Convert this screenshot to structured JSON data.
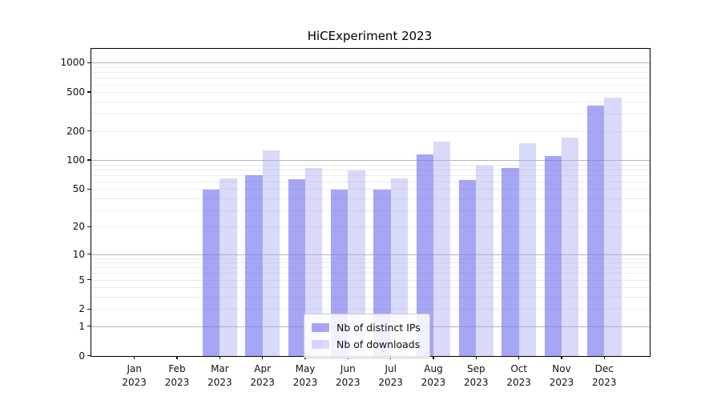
{
  "title": "HiCExperiment 2023",
  "chart_data": {
    "type": "bar",
    "title": "HiCExperiment 2023",
    "categories": [
      "Jan 2023",
      "Feb 2023",
      "Mar 2023",
      "Apr 2023",
      "May 2023",
      "Jun 2023",
      "Jul 2023",
      "Aug 2023",
      "Sep 2023",
      "Oct 2023",
      "Nov 2023",
      "Dec 2023"
    ],
    "series": [
      {
        "name": "Nb of distinct IPs",
        "color": "rgba(118,118,240,0.65)",
        "color_on_white": "#a6a6f5",
        "values": [
          0,
          0,
          49,
          70,
          63,
          49,
          49,
          115,
          62,
          82,
          110,
          365
        ]
      },
      {
        "name": "Nb of downloads",
        "color": "rgba(170,170,245,0.45)",
        "color_on_white": "#d9d9fa",
        "values": [
          0,
          0,
          65,
          125,
          82,
          78,
          65,
          155,
          88,
          150,
          172,
          440
        ]
      }
    ],
    "xlabel": "",
    "ylabel": "",
    "y_scale": "log1p",
    "ylim": [
      0,
      1390
    ],
    "y_ticks": [
      0,
      1,
      2,
      5,
      10,
      20,
      50,
      100,
      200,
      500,
      1000
    ],
    "y_major_grid": [
      1,
      10,
      100,
      1000
    ],
    "y_minor_grid": [
      2,
      3,
      4,
      5,
      6,
      7,
      8,
      9,
      20,
      30,
      40,
      50,
      60,
      70,
      80,
      90,
      200,
      300,
      400,
      500,
      600,
      700,
      800,
      900
    ],
    "grid": "on",
    "legend_position": "lower center inside",
    "axis_color": "#000000",
    "major_grid_color": "#b4b4b4",
    "minor_grid_color": "#ebebeb"
  }
}
